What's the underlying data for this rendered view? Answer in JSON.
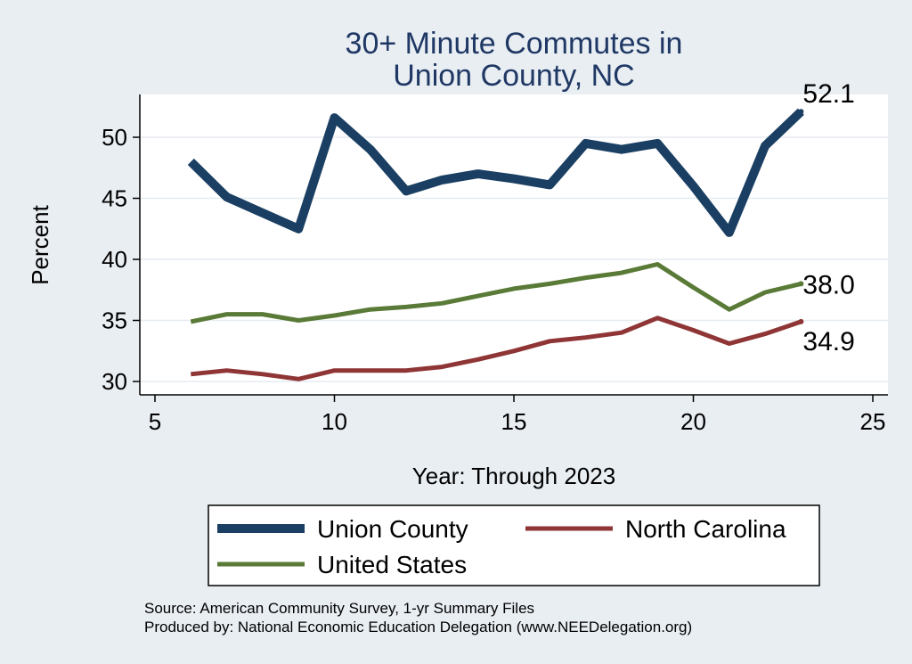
{
  "chart_data": {
    "type": "line",
    "title": [
      "30+ Minute Commutes in",
      "Union County, NC"
    ],
    "xlabel": "Year: Through 2023",
    "ylabel": "Percent",
    "xlim": [
      5,
      25
    ],
    "ylim": [
      29,
      53
    ],
    "xticks": [
      5,
      10,
      15,
      20,
      25
    ],
    "yticks": [
      30,
      35,
      40,
      45,
      50
    ],
    "series": [
      {
        "name": "Union County",
        "color": "#1b3f63",
        "x": [
          6,
          7,
          8,
          9,
          10,
          11,
          12,
          13,
          14,
          15,
          16,
          17,
          18,
          19,
          20,
          21,
          22,
          23
        ],
        "values": [
          48.0,
          45.1,
          43.8,
          42.5,
          51.6,
          49.0,
          45.6,
          46.5,
          47.0,
          46.6,
          46.1,
          49.5,
          49.0,
          49.5,
          46.0,
          42.2,
          49.3,
          52.1
        ],
        "end_label": "52.1"
      },
      {
        "name": "North Carolina",
        "color": "#8f3535",
        "x": [
          6,
          7,
          8,
          9,
          10,
          11,
          12,
          13,
          14,
          15,
          16,
          17,
          18,
          19,
          20,
          21,
          22,
          23
        ],
        "values": [
          30.6,
          30.9,
          30.6,
          30.2,
          30.9,
          30.9,
          30.9,
          31.2,
          31.8,
          32.5,
          33.3,
          33.6,
          34.0,
          35.2,
          34.2,
          33.1,
          33.9,
          34.9
        ],
        "end_label": "34.9"
      },
      {
        "name": "United States",
        "color": "#5a7a37",
        "x": [
          6,
          7,
          8,
          9,
          10,
          11,
          12,
          13,
          14,
          15,
          16,
          17,
          18,
          19,
          20,
          21,
          22,
          23
        ],
        "values": [
          34.9,
          35.5,
          35.5,
          35.0,
          35.4,
          35.9,
          36.1,
          36.4,
          37.0,
          37.6,
          38.0,
          38.5,
          38.9,
          39.6,
          37.7,
          35.9,
          37.3,
          38.0
        ],
        "end_label": "38.0"
      }
    ],
    "legend": {
      "placement": "bottom",
      "entries": [
        "Union County",
        "North Carolina",
        "United States"
      ]
    },
    "notes": [
      "Source: American Community Survey, 1-yr Summary Files",
      "Produced by: National Economic Education Delegation (www.NEEDelegation.org)"
    ]
  }
}
